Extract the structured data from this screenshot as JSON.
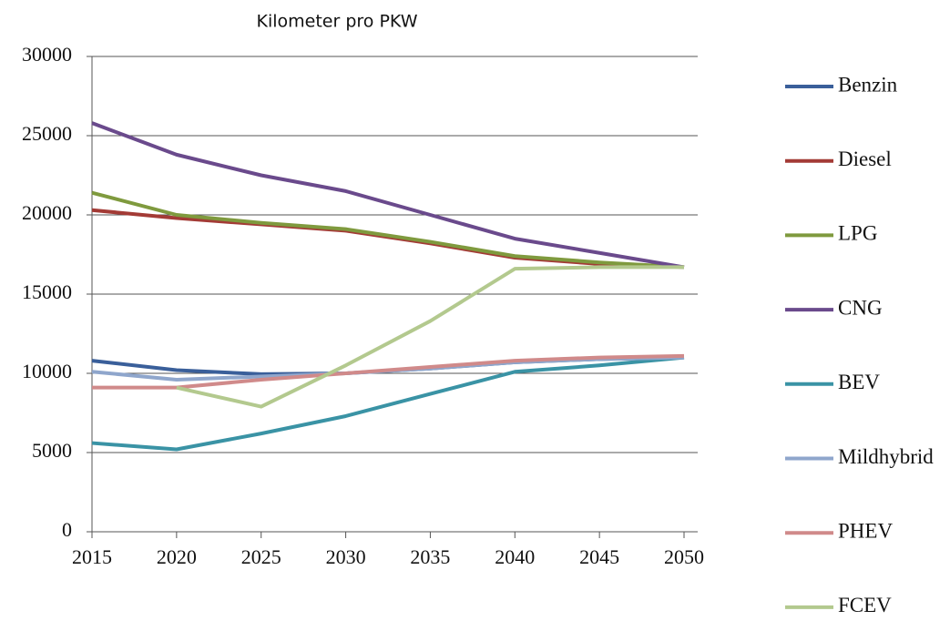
{
  "chart_data": {
    "type": "line",
    "title": "Kilometer pro PKW",
    "x": [
      2015,
      2020,
      2025,
      2030,
      2035,
      2040,
      2045,
      2050
    ],
    "series": [
      {
        "name": "Benzin",
        "color": "#3a5f9a",
        "values": [
          10800,
          10200,
          9950,
          10000,
          10300,
          10700,
          10900,
          11000
        ]
      },
      {
        "name": "Diesel",
        "color": "#a33b36",
        "values": [
          20300,
          19800,
          19400,
          19000,
          18200,
          17300,
          16900,
          16700
        ]
      },
      {
        "name": "LPG",
        "color": "#7f9a3e",
        "values": [
          21400,
          20000,
          19500,
          19100,
          18300,
          17400,
          17000,
          16700
        ]
      },
      {
        "name": "CNG",
        "color": "#6a4a8c",
        "values": [
          25800,
          23800,
          22500,
          21500,
          20000,
          18500,
          17600,
          16700
        ]
      },
      {
        "name": "BEV",
        "color": "#3a93a5",
        "values": [
          5600,
          5200,
          6200,
          7300,
          8700,
          10100,
          10500,
          11000
        ]
      },
      {
        "name": "Mildhybrid",
        "color": "#8fa6cc",
        "values": [
          10100,
          9600,
          9800,
          10000,
          10300,
          10700,
          10900,
          11000
        ]
      },
      {
        "name": "PHEV",
        "color": "#d08a8a",
        "values": [
          9100,
          9100,
          9600,
          10000,
          10400,
          10800,
          11000,
          11100
        ]
      },
      {
        "name": "FCEV",
        "color": "#b3c98e",
        "values": [
          null,
          9100,
          7900,
          10500,
          13300,
          16600,
          16700,
          16700
        ]
      }
    ],
    "xlim": [
      2015,
      2050
    ],
    "xticks": [
      2015,
      2020,
      2025,
      2030,
      2035,
      2040,
      2045,
      2050
    ],
    "ylim": [
      0,
      30000
    ],
    "yticks": [
      0,
      5000,
      10000,
      15000,
      20000,
      25000,
      30000
    ],
    "grid": true,
    "legend": "right"
  }
}
